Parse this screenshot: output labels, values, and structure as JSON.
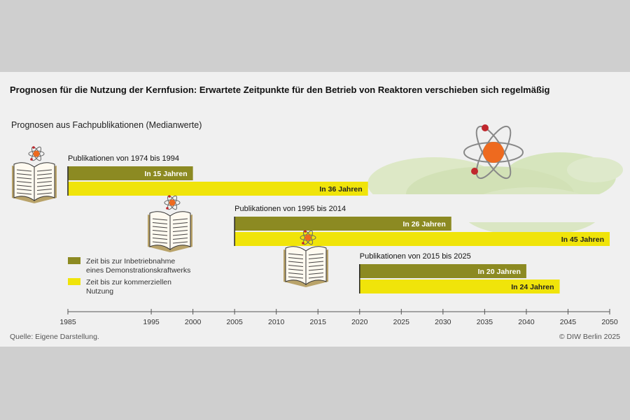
{
  "title": "Prognosen für die Nutzung der Kernfusion: Erwartete Zeitpunkte für den Betrieb von Reaktoren verschieben sich regelmäßig",
  "subtitle": "Prognosen aus Fachpublikationen (Medianwerte)",
  "source": "Quelle: Eigene Darstellung.",
  "copyright": "© DIW Berlin 2025",
  "colors": {
    "demo": "#8c8a22",
    "commercial": "#f0e40a",
    "panel": "#f0f0f0",
    "atom_core": "#ee6a1f",
    "atom_electron": "#c0272d"
  },
  "chart_data": {
    "type": "bar",
    "orientation": "horizontal",
    "xlim": [
      1985,
      2050
    ],
    "xticks": [
      1985,
      1995,
      2000,
      2005,
      2010,
      2015,
      2020,
      2025,
      2030,
      2035,
      2040,
      2045,
      2050
    ],
    "legend": [
      {
        "key": "demo",
        "label_lines": [
          "Zeit bis zur Inbetriebnahme",
          "eines Demonstrationskraftwerks"
        ]
      },
      {
        "key": "commercial",
        "label_lines": [
          "Zeit bis zur kommerziellen",
          "Nutzung"
        ]
      }
    ],
    "groups": [
      {
        "name": "Publikationen von 1974 bis 1994",
        "start": 1985,
        "bars": [
          {
            "series": "demo",
            "years": 15,
            "label": "In 15 Jahren"
          },
          {
            "series": "commercial",
            "years": 36,
            "label": "In 36 Jahren"
          }
        ]
      },
      {
        "name": "Publikationen von 1995 bis 2014",
        "start": 2005,
        "bars": [
          {
            "series": "demo",
            "years": 26,
            "label": "In 26 Jahren"
          },
          {
            "series": "commercial",
            "years": 45,
            "label": "In 45 Jahren"
          }
        ]
      },
      {
        "name": "Publikationen von 2015 bis 2025",
        "start": 2020,
        "bars": [
          {
            "series": "demo",
            "years": 20,
            "label": "In 20 Jahren"
          },
          {
            "series": "commercial",
            "years": 24,
            "label": "In 24 Jahren"
          }
        ]
      }
    ]
  }
}
